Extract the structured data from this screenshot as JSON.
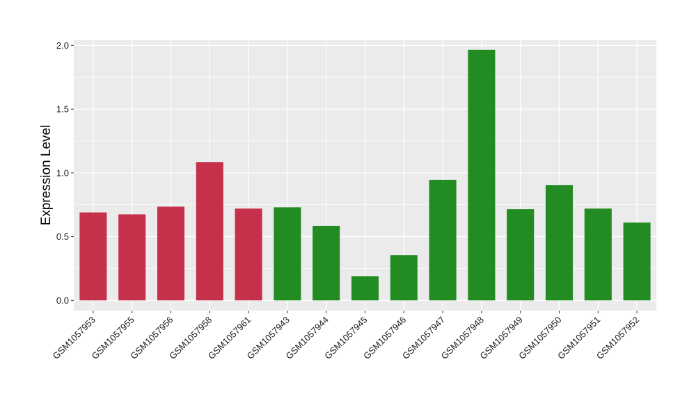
{
  "chart_data": {
    "type": "bar",
    "ylabel": "Expression Level",
    "xlabel": "",
    "ylim": [
      -0.08,
      2.04
    ],
    "yticks": [
      0.0,
      0.5,
      1.0,
      1.5,
      2.0
    ],
    "ytick_labels": [
      "0.0",
      "0.5",
      "1.0",
      "1.5",
      "2.0"
    ],
    "grid": true,
    "panel_background": "#EBEBEB",
    "grid_color": "#FFFFFF",
    "categories": [
      "GSM1057953",
      "GSM1057955",
      "GSM1057956",
      "GSM1057958",
      "GSM1057961",
      "GSM1057943",
      "GSM1057944",
      "GSM1057945",
      "GSM1057946",
      "GSM1057947",
      "GSM1057948",
      "GSM1057949",
      "GSM1057950",
      "GSM1057951",
      "GSM1057952"
    ],
    "values": [
      0.69,
      0.675,
      0.735,
      1.085,
      0.72,
      0.73,
      0.585,
      0.19,
      0.355,
      0.945,
      1.965,
      0.715,
      0.905,
      0.72,
      0.61
    ],
    "colors": [
      "#C5304A",
      "#C5304A",
      "#C5304A",
      "#C5304A",
      "#C5304A",
      "#228B22",
      "#228B22",
      "#228B22",
      "#228B22",
      "#228B22",
      "#228B22",
      "#228B22",
      "#228B22",
      "#228B22",
      "#228B22"
    ]
  }
}
